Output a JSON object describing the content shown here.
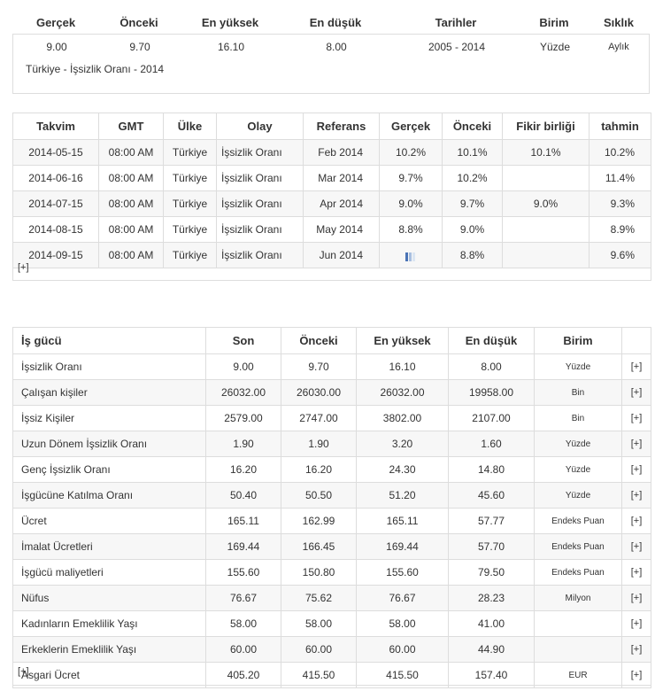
{
  "summary": {
    "headers": {
      "actual": "Gerçek",
      "previous": "Önceki",
      "highest": "En yüksek",
      "lowest": "En düşük",
      "dates": "Tarihler",
      "unit": "Birim",
      "frequency": "Sıklık"
    },
    "values": {
      "actual": "9.00",
      "previous": "9.70",
      "highest": "16.10",
      "lowest": "8.00",
      "dates": "2005 - 2014",
      "unit": "Yüzde",
      "frequency": "Aylık"
    },
    "caption": "Türkiye - İşsizlik Oranı - 2014"
  },
  "calendar": {
    "headers": {
      "date": "Takvim",
      "gmt": "GMT",
      "country": "Ülke",
      "event": "Olay",
      "reference": "Referans",
      "actual": "Gerçek",
      "previous": "Önceki",
      "consensus": "Fikir birliği",
      "forecast": "tahmin"
    },
    "rows": [
      {
        "date": "2014-05-15",
        "gmt": "08:00 AM",
        "country": "Türkiye",
        "event": "İşsizlik Oranı",
        "reference": "Feb 2014",
        "actual": "10.2%",
        "previous": "10.1%",
        "consensus": "10.1%",
        "forecast": "10.2%"
      },
      {
        "date": "2014-06-16",
        "gmt": "08:00 AM",
        "country": "Türkiye",
        "event": "İşsizlik Oranı",
        "reference": "Mar 2014",
        "actual": "9.7%",
        "previous": "10.2%",
        "consensus": "",
        "forecast": "11.4%"
      },
      {
        "date": "2014-07-15",
        "gmt": "08:00 AM",
        "country": "Türkiye",
        "event": "İşsizlik Oranı",
        "reference": "Apr 2014",
        "actual": "9.0%",
        "previous": "9.7%",
        "consensus": "9.0%",
        "forecast": "9.3%"
      },
      {
        "date": "2014-08-15",
        "gmt": "08:00 AM",
        "country": "Türkiye",
        "event": "İşsizlik Oranı",
        "reference": "May 2014",
        "actual": "8.8%",
        "previous": "9.0%",
        "consensus": "",
        "forecast": "8.9%"
      },
      {
        "date": "2014-09-15",
        "gmt": "08:00 AM",
        "country": "Türkiye",
        "event": "İşsizlik Oranı",
        "reference": "Jun 2014",
        "actual": "",
        "previous": "8.8%",
        "consensus": "",
        "forecast": "9.6%"
      }
    ],
    "pending_bar_colors": [
      "#4a73b5",
      "#a8bfe0",
      "#dce6f2"
    ],
    "more_link": "[+]"
  },
  "labour": {
    "headers": {
      "name": "İş gücü",
      "last": "Son",
      "previous": "Önceki",
      "highest": "En yüksek",
      "lowest": "En düşük",
      "unit": "Birim"
    },
    "row_link": "[+]",
    "rows": [
      {
        "name": "İşsizlik Oranı",
        "last": "9.00",
        "previous": "9.70",
        "highest": "16.10",
        "lowest": "8.00",
        "unit": "Yüzde"
      },
      {
        "name": "Çalışan kişiler",
        "last": "26032.00",
        "previous": "26030.00",
        "highest": "26032.00",
        "lowest": "19958.00",
        "unit": "Bin"
      },
      {
        "name": "İşsiz Kişiler",
        "last": "2579.00",
        "previous": "2747.00",
        "highest": "3802.00",
        "lowest": "2107.00",
        "unit": "Bin"
      },
      {
        "name": "Uzun Dönem İşsizlik Oranı",
        "last": "1.90",
        "previous": "1.90",
        "highest": "3.20",
        "lowest": "1.60",
        "unit": "Yüzde"
      },
      {
        "name": "Genç İşsizlik Oranı",
        "last": "16.20",
        "previous": "16.20",
        "highest": "24.30",
        "lowest": "14.80",
        "unit": "Yüzde"
      },
      {
        "name": "İşgücüne Katılma Oranı",
        "last": "50.40",
        "previous": "50.50",
        "highest": "51.20",
        "lowest": "45.60",
        "unit": "Yüzde"
      },
      {
        "name": "Ücret",
        "last": "165.11",
        "previous": "162.99",
        "highest": "165.11",
        "lowest": "57.77",
        "unit": "Endeks Puan"
      },
      {
        "name": "İmalat Ücretleri",
        "last": "169.44",
        "previous": "166.45",
        "highest": "169.44",
        "lowest": "57.70",
        "unit": "Endeks Puan"
      },
      {
        "name": "İşgücü maliyetleri",
        "last": "155.60",
        "previous": "150.80",
        "highest": "155.60",
        "lowest": "79.50",
        "unit": "Endeks Puan"
      },
      {
        "name": "Nüfus",
        "last": "76.67",
        "previous": "75.62",
        "highest": "76.67",
        "lowest": "28.23",
        "unit": "Milyon"
      },
      {
        "name": "Kadınların Emeklilik Yaşı",
        "last": "58.00",
        "previous": "58.00",
        "highest": "58.00",
        "lowest": "41.00",
        "unit": ""
      },
      {
        "name": "Erkeklerin Emeklilik Yaşı",
        "last": "60.00",
        "previous": "60.00",
        "highest": "60.00",
        "lowest": "44.90",
        "unit": ""
      },
      {
        "name": "Asgari Ücret",
        "last": "405.20",
        "previous": "415.50",
        "highest": "415.50",
        "lowest": "157.40",
        "unit": "EUR"
      }
    ],
    "more_link": "[+]"
  }
}
